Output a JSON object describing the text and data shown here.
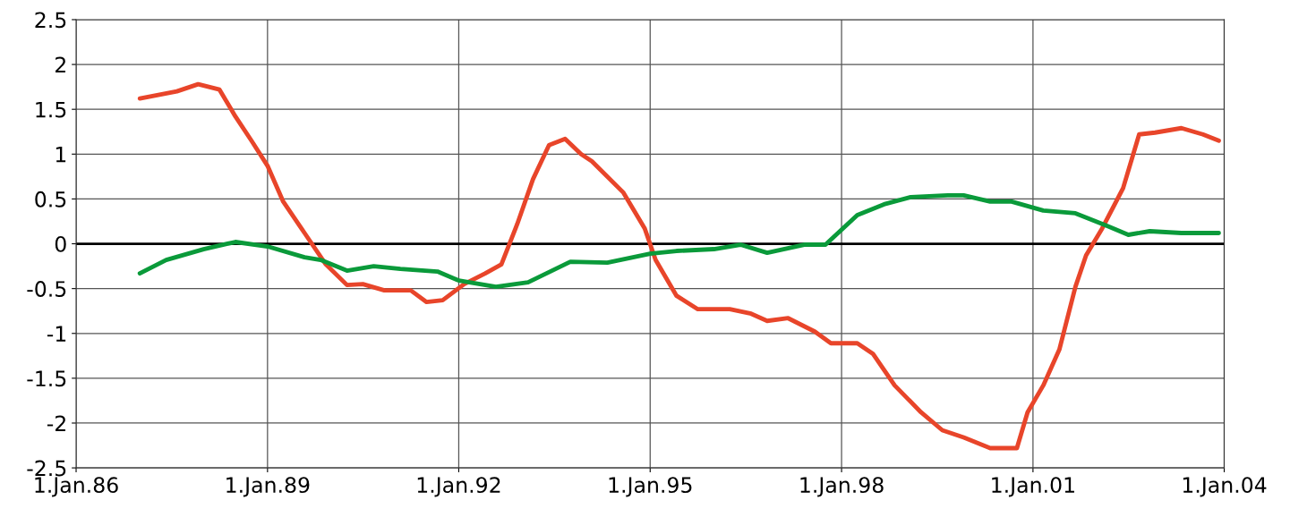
{
  "chart_data": {
    "type": "line",
    "xlim": [
      "1986-01-01",
      "2004-01-01"
    ],
    "xticks": [
      {
        "value": "1986-01-01",
        "label": "1.Jan.86"
      },
      {
        "value": "1989-01-01",
        "label": "1.Jan.89"
      },
      {
        "value": "1992-01-01",
        "label": "1.Jan.92"
      },
      {
        "value": "1995-01-01",
        "label": "1.Jan.95"
      },
      {
        "value": "1998-01-01",
        "label": "1.Jan.98"
      },
      {
        "value": "2001-01-01",
        "label": "1.Jan.01"
      },
      {
        "value": "2004-01-01",
        "label": "1.Jan.04"
      }
    ],
    "ylim": [
      -2.5,
      2.5
    ],
    "yticks": [
      -2.5,
      -2,
      -1.5,
      -1,
      -0.5,
      0,
      0.5,
      1,
      1.5,
      2,
      2.5
    ],
    "grid": true,
    "line_style": "solid",
    "ref_lines": [
      {
        "axis": "y",
        "value": 0,
        "color": "#000000"
      }
    ],
    "series": [
      {
        "color": "#e8452a",
        "x": [
          "1987-01",
          "1987-08",
          "1987-12",
          "1988-04",
          "1988-07",
          "1988-10",
          "1989-01",
          "1989-04",
          "1989-08",
          "1989-12",
          "1990-04",
          "1990-07",
          "1990-11",
          "1991-04",
          "1991-07",
          "1991-10",
          "1992-02",
          "1992-06",
          "1992-09",
          "1992-12",
          "1993-03",
          "1993-06",
          "1993-09",
          "1993-12",
          "1994-02",
          "1994-08",
          "1994-12",
          "1995-02",
          "1995-06",
          "1995-10",
          "1996-01",
          "1996-04",
          "1996-08",
          "1996-11",
          "1997-03",
          "1997-08",
          "1997-11",
          "1998-04",
          "1998-07",
          "1998-11",
          "1999-04",
          "1999-08",
          "1999-12",
          "2000-05",
          "2000-10",
          "2000-12",
          "2001-03",
          "2001-06",
          "2001-09",
          "2001-11",
          "2002-02",
          "2002-06",
          "2002-09",
          "2002-12",
          "2003-05",
          "2003-09",
          "2003-12"
        ],
        "values": [
          1.62,
          1.7,
          1.78,
          1.72,
          1.42,
          1.15,
          0.87,
          0.47,
          0.12,
          -0.23,
          -0.46,
          -0.45,
          -0.52,
          -0.52,
          -0.65,
          -0.63,
          -0.45,
          -0.33,
          -0.23,
          0.22,
          0.72,
          1.1,
          1.17,
          1.0,
          0.92,
          0.57,
          0.17,
          -0.18,
          -0.58,
          -0.73,
          -0.73,
          -0.73,
          -0.78,
          -0.86,
          -0.83,
          -0.98,
          -1.11,
          -1.11,
          -1.23,
          -1.58,
          -1.88,
          -2.08,
          -2.16,
          -2.28,
          -2.28,
          -1.88,
          -1.58,
          -1.18,
          -0.48,
          -0.13,
          0.17,
          0.62,
          1.22,
          1.24,
          1.29,
          1.22,
          1.15
        ]
      },
      {
        "color": "#0a9a3a",
        "x": [
          "1987-01",
          "1987-06",
          "1988-01",
          "1988-07",
          "1989-01",
          "1989-08",
          "1989-11",
          "1990-04",
          "1990-09",
          "1991-02",
          "1991-09",
          "1992-01",
          "1992-08",
          "1993-02",
          "1993-10",
          "1994-05",
          "1995-01",
          "1995-06",
          "1996-01",
          "1996-06",
          "1996-11",
          "1997-06",
          "1997-10",
          "1998-04",
          "1998-09",
          "1999-02",
          "1999-09",
          "1999-12",
          "2000-05",
          "2000-09",
          "2001-03",
          "2001-09",
          "2002-03",
          "2002-07",
          "2002-11",
          "2003-05",
          "2003-12"
        ],
        "values": [
          -0.33,
          -0.18,
          -0.06,
          0.02,
          -0.03,
          -0.15,
          -0.18,
          -0.3,
          -0.25,
          -0.28,
          -0.31,
          -0.41,
          -0.48,
          -0.43,
          -0.2,
          -0.21,
          -0.11,
          -0.08,
          -0.06,
          -0.01,
          -0.1,
          -0.01,
          -0.01,
          0.32,
          0.44,
          0.52,
          0.54,
          0.54,
          0.47,
          0.47,
          0.37,
          0.34,
          0.2,
          0.1,
          0.14,
          0.12,
          0.12
        ]
      }
    ]
  }
}
